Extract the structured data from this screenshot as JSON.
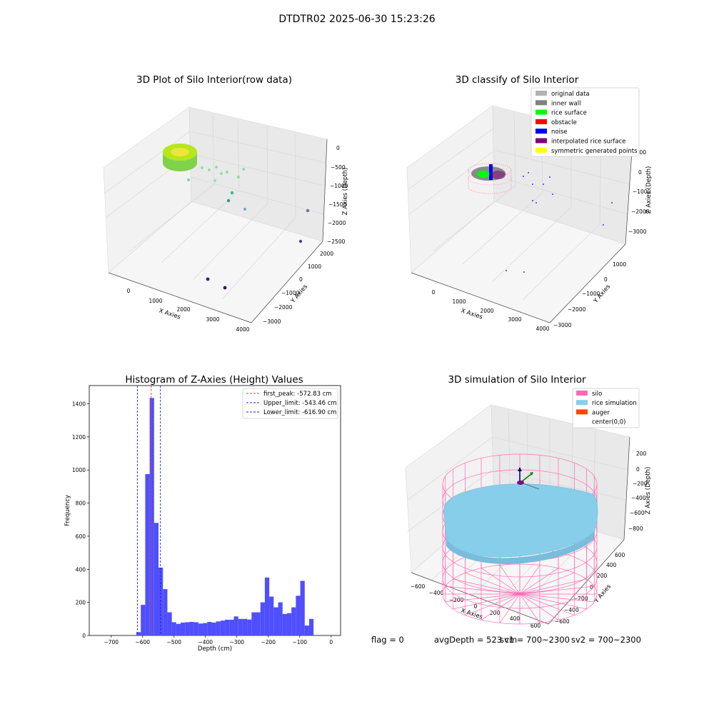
{
  "suptitle": "DTDTR02 2025-06-30 15:23:26",
  "colors": {
    "hist_bar": "#4f4fff",
    "peak_line": "#e04040",
    "limit_line": "#2020d0",
    "silo": "#ff69b4",
    "rice": "#87ceeb",
    "auger": "#ff4500"
  },
  "chart_data": [
    {
      "type": "scatter3d",
      "title": "3D Plot of Silo Interior(row data)",
      "xlabel": "X Axies",
      "ylabel": "Y Axies",
      "zlabel": "Z Axies (Depth)",
      "x_ticks": [
        "0",
        "1000",
        "2000",
        "3000",
        "4000"
      ],
      "y_ticks": [
        "−3000",
        "−2000",
        "−1000",
        "0",
        "1000",
        "2000"
      ],
      "z_ticks": [
        "−2500",
        "−2000",
        "−1500",
        "−1000",
        "−500",
        "0"
      ]
    },
    {
      "type": "scatter3d",
      "title": "3D classify of Silo Interior",
      "xlabel": "X Axies",
      "ylabel": "Y Axies",
      "zlabel": "Z Axies (Depth)",
      "x_ticks": [
        "0",
        "1000",
        "2000",
        "3000",
        "4000"
      ],
      "y_ticks": [
        "−3000",
        "−2000",
        "−1000",
        "0",
        "1000"
      ],
      "z_ticks": [
        "−3000",
        "−2000",
        "−1000",
        "0",
        "1000"
      ],
      "legend_position": "top-right",
      "legend": [
        {
          "label": "original data",
          "color": "#b3b3b3"
        },
        {
          "label": "inner wall",
          "color": "#808080"
        },
        {
          "label": "rice surface",
          "color": "#00ff00"
        },
        {
          "label": "obstacle",
          "color": "#ff0000"
        },
        {
          "label": "noise",
          "color": "#0000ff"
        },
        {
          "label": "interpolated rice surface",
          "color": "#800080"
        },
        {
          "label": "symmetric generated points",
          "color": "#ffff00"
        }
      ]
    },
    {
      "type": "bar",
      "title": "Histogram of Z-Axies (Height) Values",
      "xlabel": "Depth (cm)",
      "ylabel": "Frequency",
      "xlim": [
        -770,
        30
      ],
      "ylim": [
        0,
        1510
      ],
      "x_ticks": [
        -700,
        -600,
        -500,
        -400,
        -300,
        -200,
        -100,
        0
      ],
      "y_ticks": [
        0,
        200,
        400,
        600,
        800,
        1000,
        1200,
        1400
      ],
      "bin_width": 14.1,
      "bin_start": -620,
      "counts": [
        20,
        185,
        975,
        1435,
        680,
        410,
        280,
        140,
        80,
        70,
        78,
        80,
        82,
        80,
        72,
        75,
        82,
        78,
        85,
        90,
        95,
        95,
        115,
        100,
        100,
        96,
        140,
        140,
        200,
        350,
        235,
        170,
        200,
        130,
        135,
        170,
        240,
        330,
        60,
        100
      ],
      "vlines": [
        {
          "label": "first_peak: -572.83 cm",
          "value": -572.83,
          "color": "#e04040"
        },
        {
          "label": "Upper_limit: -543.46 cm",
          "value": -543.46,
          "color": "#2020d0"
        },
        {
          "label": "Lower_limit: -616.90 cm",
          "value": -616.9,
          "color": "#2020d0"
        }
      ],
      "legend_position": "top-right"
    },
    {
      "type": "surface3d",
      "title": "3D simulation of Silo Interior",
      "xlabel": "X Axies",
      "ylabel": "Y Axies",
      "zlabel": "Z Axies (Depth)",
      "x_ticks": [
        "−600",
        "−400",
        "−200",
        "0",
        "200",
        "400",
        "600"
      ],
      "y_ticks": [
        "−600",
        "−400",
        "−200",
        "0",
        "200",
        "400",
        "600"
      ],
      "z_ticks": [
        "−800",
        "−600",
        "−400",
        "−200",
        "0",
        "200"
      ],
      "legend_position": "top-right",
      "legend": [
        {
          "label": "silo",
          "color": "#ff69b4"
        },
        {
          "label": "rice simulation",
          "color": "#87ceeb"
        },
        {
          "label": "auger",
          "color": "#ff4500"
        },
        {
          "label": "center(0,0)",
          "color": ""
        }
      ]
    }
  ],
  "footer": {
    "flag": "flag = 0",
    "avg_depth": "avgDepth = 523 cm",
    "sv1": "sv1 = 700~2300",
    "sv2": "sv2 = 700~2300"
  }
}
